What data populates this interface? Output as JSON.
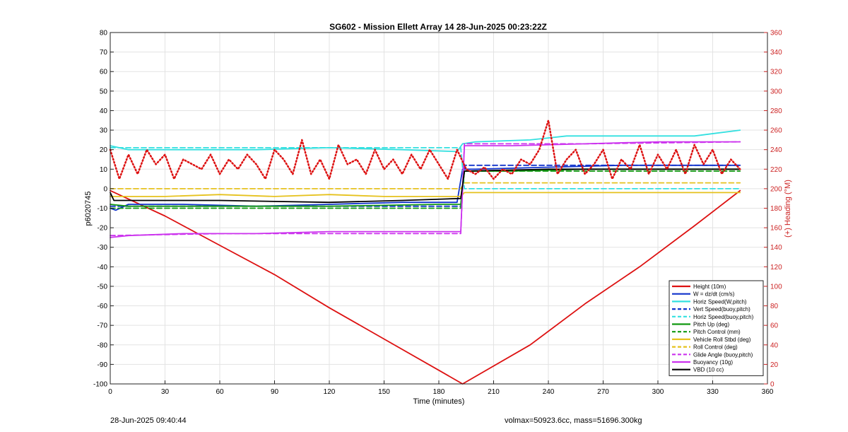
{
  "chart_data": {
    "type": "line",
    "title": "SG602 - Mission Ellett Array 14 28-Jun-2025 00:23:22Z",
    "xlabel": "Time (minutes)",
    "ylabel": "p6020745",
    "y2label": "(+) Heading (°M)",
    "xlim": [
      0,
      360
    ],
    "ylim": [
      -100,
      80
    ],
    "y2lim": [
      0,
      360
    ],
    "xticks": [
      "0",
      "30",
      "60",
      "90",
      "120",
      "150",
      "180",
      "210",
      "240",
      "270",
      "300",
      "330",
      "360"
    ],
    "yticks": [
      "80",
      "70",
      "60",
      "50",
      "40",
      "30",
      "20",
      "10",
      "0",
      "-10",
      "-20",
      "-30",
      "-40",
      "-50",
      "-60",
      "-70",
      "-80",
      "-90",
      "-100"
    ],
    "y2ticks": [
      "360",
      "340",
      "320",
      "300",
      "280",
      "260",
      "240",
      "220",
      "200",
      "180",
      "160",
      "140",
      "120",
      "100",
      "80",
      "60",
      "40",
      "20",
      "0"
    ],
    "grid": true,
    "legend_position": "bottom-right",
    "colors": {
      "red": "#dd1111",
      "blue": "#1133cc",
      "cyan": "#33e0e0",
      "green": "#119911",
      "yellow": "#e6c21e",
      "magenta": "#cc33ee",
      "black": "#000000",
      "right_axis": "#cc2222"
    },
    "series": [
      {
        "name": "Height (10m)",
        "color": "#dd1111",
        "style": "solid",
        "axis": "left",
        "x": [
          0,
          30,
          60,
          90,
          120,
          150,
          180,
          193,
          230,
          260,
          290,
          320,
          345
        ],
        "y": [
          -1,
          -14,
          -29,
          -44,
          -61,
          -77,
          -93,
          -100,
          -80,
          -59,
          -40,
          -19,
          -1
        ]
      },
      {
        "name": "W = dz/dt (cm/s)",
        "color": "#1133cc",
        "style": "solid",
        "axis": "left",
        "x": [
          0,
          3,
          10,
          40,
          80,
          120,
          160,
          190,
          193,
          200,
          240,
          280,
          320,
          345
        ],
        "y": [
          -10,
          -11,
          -8,
          -8,
          -9,
          -8,
          -7,
          -7,
          10,
          10,
          11,
          12,
          12,
          12
        ]
      },
      {
        "name": "Horiz Speed(W,pitch)",
        "color": "#33e0e0",
        "style": "solid",
        "axis": "left",
        "x": [
          0,
          10,
          40,
          80,
          120,
          160,
          190,
          193,
          200,
          230,
          250,
          280,
          320,
          345
        ],
        "y": [
          22,
          20,
          20,
          20,
          21,
          20,
          19,
          23,
          24,
          25,
          27,
          27,
          27,
          30
        ]
      },
      {
        "name": "Vert Speed(buoy,pitch)",
        "color": "#1133cc",
        "style": "dashed",
        "axis": "left",
        "x": [
          0,
          60,
          120,
          192,
          194,
          200,
          260,
          320,
          345
        ],
        "y": [
          -9,
          -9,
          -9,
          -9,
          12,
          12,
          12,
          12,
          12
        ]
      },
      {
        "name": "Horiz Speed(buoy,pitch)",
        "color": "#33e0e0",
        "style": "dashed",
        "axis": "left",
        "x": [
          0,
          60,
          120,
          192,
          194,
          200,
          260,
          320,
          345
        ],
        "y": [
          21,
          21,
          21,
          21,
          0,
          0,
          0,
          0,
          0
        ]
      },
      {
        "name": "Pitch Up (deg)",
        "color": "#119911",
        "style": "solid",
        "axis": "left",
        "x": [
          0,
          10,
          60,
          120,
          180,
          192,
          194,
          220,
          260,
          300,
          345
        ],
        "y": [
          -8,
          -9,
          -9,
          -9,
          -8,
          -8,
          9,
          9,
          10,
          10,
          10
        ]
      },
      {
        "name": "Pitch Control (mm)",
        "color": "#119911",
        "style": "dashed",
        "axis": "left",
        "x": [
          0,
          60,
          120,
          192,
          194,
          260,
          345
        ],
        "y": [
          -10,
          -10,
          -10,
          -10,
          9,
          9,
          9
        ]
      },
      {
        "name": "Vehicle Roll Stbd (deg)",
        "color": "#e6c21e",
        "style": "solid",
        "axis": "left",
        "x": [
          0,
          30,
          60,
          90,
          120,
          150,
          192,
          194,
          230,
          260,
          290,
          320,
          345
        ],
        "y": [
          -4,
          -4,
          -3,
          -4,
          -3,
          -4,
          -4,
          -2,
          -2,
          -2,
          -2,
          -2,
          -2
        ]
      },
      {
        "name": "Roll Control (deg)",
        "color": "#e6c21e",
        "style": "dashed",
        "axis": "left",
        "x": [
          0,
          60,
          120,
          192,
          194,
          260,
          345
        ],
        "y": [
          0,
          0,
          0,
          0,
          3,
          3,
          3
        ]
      },
      {
        "name": "Glide Angle (buoy,pitch)",
        "color": "#cc33ee",
        "style": "dashed",
        "axis": "left",
        "x": [
          0,
          60,
          120,
          192,
          194,
          260,
          345
        ],
        "y": [
          -24,
          -23,
          -23,
          -23,
          23,
          23,
          24
        ]
      },
      {
        "name": "Buoyancy (10g)",
        "color": "#cc33ee",
        "style": "solid",
        "axis": "left",
        "x": [
          0,
          10,
          40,
          80,
          120,
          160,
          192,
          194,
          220,
          260,
          300,
          345
        ],
        "y": [
          -25,
          -24,
          -23,
          -23,
          -22,
          -22,
          -22,
          22,
          22,
          23,
          24,
          24
        ]
      },
      {
        "name": "VBD (10 cc)",
        "color": "#000000",
        "style": "solid",
        "axis": "left",
        "x": [
          0,
          2,
          60,
          120,
          160,
          192,
          194,
          240,
          280,
          345
        ],
        "y": [
          -2,
          -6,
          -6,
          -7,
          -6,
          -5,
          9,
          10,
          10,
          10
        ]
      },
      {
        "name": "Heading",
        "color": "#dd1111",
        "style": "dotted",
        "axis": "right",
        "x": [
          0,
          5,
          10,
          15,
          20,
          25,
          30,
          35,
          40,
          45,
          50,
          55,
          60,
          65,
          70,
          75,
          80,
          85,
          90,
          95,
          100,
          105,
          110,
          115,
          120,
          125,
          130,
          135,
          140,
          145,
          150,
          155,
          160,
          165,
          170,
          175,
          180,
          185,
          190,
          195,
          200,
          205,
          210,
          215,
          220,
          225,
          230,
          235,
          240,
          245,
          250,
          255,
          260,
          265,
          270,
          275,
          280,
          285,
          290,
          295,
          300,
          305,
          310,
          315,
          320,
          325,
          330,
          335,
          340,
          345
        ],
        "y": [
          240,
          210,
          235,
          215,
          240,
          225,
          235,
          210,
          230,
          225,
          220,
          235,
          215,
          230,
          220,
          235,
          225,
          210,
          240,
          230,
          215,
          250,
          215,
          230,
          210,
          245,
          225,
          230,
          215,
          240,
          220,
          230,
          215,
          235,
          220,
          240,
          225,
          210,
          240,
          220,
          215,
          222,
          210,
          220,
          215,
          230,
          225,
          240,
          270,
          215,
          230,
          240,
          215,
          225,
          240,
          210,
          230,
          220,
          245,
          215,
          235,
          220,
          240,
          215,
          245,
          225,
          240,
          215,
          230,
          220
        ]
      }
    ]
  },
  "footer": {
    "left": "28-Jun-2025 09:40:44",
    "right": "volmax=50923.6cc, mass=51696.300kg"
  }
}
